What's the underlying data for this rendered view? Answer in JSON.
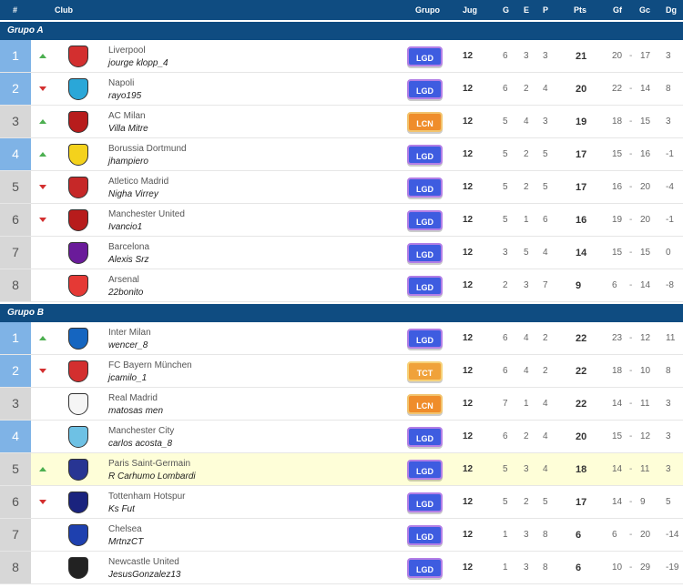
{
  "header": {
    "cols": [
      "#",
      "Club",
      "Grupo",
      "Jug",
      "G",
      "E",
      "P",
      "Pts",
      "Gf",
      "Gc",
      "Dg"
    ]
  },
  "groups": [
    {
      "title": "Grupo A",
      "rows": [
        {
          "pos": "1",
          "trend": "up",
          "team": "Liverpool",
          "user": "jourge klopp_4",
          "badge": "LGD",
          "jug": "12",
          "g": "6",
          "e": "3",
          "p": "3",
          "pts": "21",
          "gf": "20",
          "gc": "17",
          "dg": "3",
          "crest": "#d32f2f"
        },
        {
          "pos": "2",
          "trend": "down",
          "team": "Napoli",
          "user": "rayo195",
          "badge": "LGD",
          "jug": "12",
          "g": "6",
          "e": "2",
          "p": "4",
          "pts": "20",
          "gf": "22",
          "gc": "14",
          "dg": "8",
          "crest": "#2aa7d8"
        },
        {
          "pos": "3",
          "trend": "up",
          "team": "AC Milan",
          "user": "Villa Mitre",
          "badge": "LCN",
          "jug": "12",
          "g": "5",
          "e": "4",
          "p": "3",
          "pts": "19",
          "gf": "18",
          "gc": "15",
          "dg": "3",
          "crest": "#b71c1c"
        },
        {
          "pos": "4",
          "trend": "up",
          "team": "Borussia Dortmund",
          "user": "jhampiero",
          "badge": "LGD",
          "jug": "12",
          "g": "5",
          "e": "2",
          "p": "5",
          "pts": "17",
          "gf": "15",
          "gc": "16",
          "dg": "-1",
          "crest": "#f4d21c"
        },
        {
          "pos": "5",
          "trend": "down",
          "team": "Atletico Madrid",
          "user": "Nigha Virrey",
          "badge": "LGD",
          "jug": "12",
          "g": "5",
          "e": "2",
          "p": "5",
          "pts": "17",
          "gf": "16",
          "gc": "20",
          "dg": "-4",
          "crest": "#c62828"
        },
        {
          "pos": "6",
          "trend": "down",
          "team": "Manchester United",
          "user": "Ivancio1",
          "badge": "LGD",
          "jug": "12",
          "g": "5",
          "e": "1",
          "p": "6",
          "pts": "16",
          "gf": "19",
          "gc": "20",
          "dg": "-1",
          "crest": "#b71c1c"
        },
        {
          "pos": "7",
          "trend": "",
          "team": "Barcelona",
          "user": "Alexis Srz",
          "badge": "LGD",
          "jug": "12",
          "g": "3",
          "e": "5",
          "p": "4",
          "pts": "14",
          "gf": "15",
          "gc": "15",
          "dg": "0",
          "crest": "#6a1b9a"
        },
        {
          "pos": "8",
          "trend": "",
          "team": "Arsenal",
          "user": "22bonito",
          "badge": "LGD",
          "jug": "12",
          "g": "2",
          "e": "3",
          "p": "7",
          "pts": "9",
          "gf": "6",
          "gc": "14",
          "dg": "-8",
          "crest": "#e53935"
        }
      ]
    },
    {
      "title": "Grupo B",
      "rows": [
        {
          "pos": "1",
          "trend": "up",
          "team": "Inter Milan",
          "user": "wencer_8",
          "badge": "LGD",
          "jug": "12",
          "g": "6",
          "e": "4",
          "p": "2",
          "pts": "22",
          "gf": "23",
          "gc": "12",
          "dg": "11",
          "crest": "#1565c0"
        },
        {
          "pos": "2",
          "trend": "down",
          "team": "FC Bayern München",
          "user": "jcamilo_1",
          "badge": "TCT",
          "jug": "12",
          "g": "6",
          "e": "4",
          "p": "2",
          "pts": "22",
          "gf": "18",
          "gc": "10",
          "dg": "8",
          "crest": "#d32f2f"
        },
        {
          "pos": "3",
          "trend": "",
          "team": "Real Madrid",
          "user": "matosas men",
          "badge": "LCN",
          "jug": "12",
          "g": "7",
          "e": "1",
          "p": "4",
          "pts": "22",
          "gf": "14",
          "gc": "11",
          "dg": "3",
          "crest": "#f5f5f5"
        },
        {
          "pos": "4",
          "trend": "",
          "team": "Manchester City",
          "user": "carlos acosta_8",
          "badge": "LGD",
          "jug": "12",
          "g": "6",
          "e": "2",
          "p": "4",
          "pts": "20",
          "gf": "15",
          "gc": "12",
          "dg": "3",
          "crest": "#6ec1e4"
        },
        {
          "pos": "5",
          "trend": "up",
          "team": "Paris Saint-Germain",
          "user": "R Carhumo Lombardi",
          "badge": "LGD",
          "jug": "12",
          "g": "5",
          "e": "3",
          "p": "4",
          "pts": "18",
          "gf": "14",
          "gc": "11",
          "dg": "3",
          "crest": "#283593"
        },
        {
          "pos": "6",
          "trend": "down",
          "team": "Tottenham Hotspur",
          "user": "Ks Fut",
          "badge": "LGD",
          "jug": "12",
          "g": "5",
          "e": "2",
          "p": "5",
          "pts": "17",
          "gf": "14",
          "gc": "9",
          "dg": "5",
          "crest": "#1a237e"
        },
        {
          "pos": "7",
          "trend": "",
          "team": "Chelsea",
          "user": "MrtnzCT",
          "badge": "LGD",
          "jug": "12",
          "g": "1",
          "e": "3",
          "p": "8",
          "pts": "6",
          "gf": "6",
          "gc": "20",
          "dg": "-14",
          "crest": "#1e40af"
        },
        {
          "pos": "8",
          "trend": "",
          "team": "Newcastle United",
          "user": "JesusGonzalez13",
          "badge": "LGD",
          "jug": "12",
          "g": "1",
          "e": "3",
          "p": "8",
          "pts": "6",
          "gf": "10",
          "gc": "29",
          "dg": "-19",
          "crest": "#222222"
        }
      ]
    }
  ],
  "colors": {
    "header": "#0f4c81",
    "pos_blue": "#7fb3e6",
    "pos_gray": "#d7d7d7",
    "highlight": "#fefed8"
  }
}
